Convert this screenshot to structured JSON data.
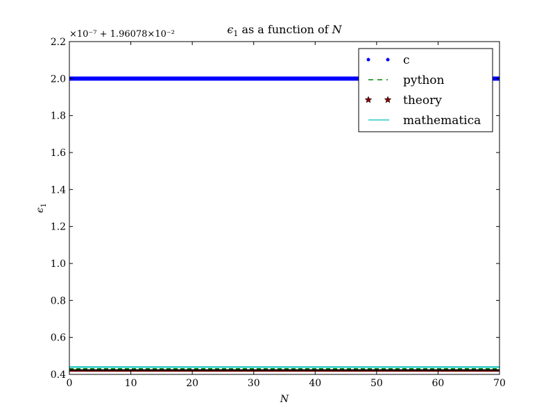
{
  "chart_data": {
    "type": "line",
    "title": "ϵ1 as a function of N",
    "xlabel": "N",
    "ylabel": "ϵ1",
    "axis_offset": "×10⁻⁷ + 1.96078×10⁻²",
    "xlim": [
      0,
      70
    ],
    "ylim": [
      0.4,
      2.2
    ],
    "xticks": [
      0,
      10,
      20,
      30,
      40,
      50,
      60,
      70
    ],
    "xtick_labels": [
      "0",
      "10",
      "20",
      "30",
      "40",
      "50",
      "60",
      "70"
    ],
    "yticks": [
      0.4,
      0.6,
      0.8,
      1.0,
      1.2,
      1.4,
      1.6,
      1.8,
      2.0,
      2.2
    ],
    "ytick_labels": [
      "0.4",
      "0.6",
      "0.8",
      "1.0",
      "1.2",
      "1.4",
      "1.6",
      "1.8",
      "2.0",
      "2.2"
    ],
    "grid": false,
    "legend_position": "top-right",
    "series": [
      {
        "name": "c",
        "style": "dots",
        "color": "#0000ff",
        "x": [
          0,
          70
        ],
        "y": [
          2.0,
          2.0
        ]
      },
      {
        "name": "python",
        "style": "dashed",
        "color": "#008000",
        "x": [
          0,
          70
        ],
        "y": [
          0.43,
          0.43
        ]
      },
      {
        "name": "theory",
        "style": "stars",
        "color": "#800000",
        "x": [
          0,
          70
        ],
        "y": [
          0.42,
          0.42
        ]
      },
      {
        "name": "mathematica",
        "style": "solid",
        "color": "#00bfbf",
        "x": [
          0,
          70
        ],
        "y": [
          0.44,
          0.44
        ]
      }
    ]
  }
}
